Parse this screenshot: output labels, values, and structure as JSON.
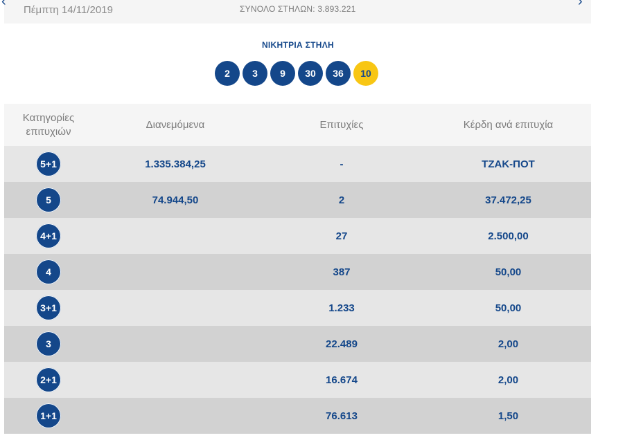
{
  "header": {
    "date": "Πέμπτη 14/11/2019",
    "total_columns": "ΣΥΝΟΛΟ ΣΤΗΛΩΝ: 3.893.221",
    "prev_icon": "chevron-left-icon",
    "next_icon": "chevron-right-icon"
  },
  "winning": {
    "title": "ΝΙΚΗΤΡΙΑ ΣΤΗΛΗ",
    "numbers": [
      "2",
      "3",
      "9",
      "30",
      "36"
    ],
    "joker": "10",
    "colors": {
      "ball": "#14478a",
      "joker": "#f8c614"
    }
  },
  "table": {
    "headers": {
      "category": "Κατηγορίες επιτυχιών",
      "distributed": "Διανεμόμενα",
      "winners": "Επιτυχίες",
      "prize": "Κέρδη ανά επιτυχία"
    },
    "rows": [
      {
        "category": "5+1",
        "distributed": "1.335.384,25",
        "winners": "-",
        "prize": "ΤΖΑΚ-ΠΟΤ"
      },
      {
        "category": "5",
        "distributed": "74.944,50",
        "winners": "2",
        "prize": "37.472,25"
      },
      {
        "category": "4+1",
        "distributed": "",
        "winners": "27",
        "prize": "2.500,00"
      },
      {
        "category": "4",
        "distributed": "",
        "winners": "387",
        "prize": "50,00"
      },
      {
        "category": "3+1",
        "distributed": "",
        "winners": "1.233",
        "prize": "50,00"
      },
      {
        "category": "3",
        "distributed": "",
        "winners": "22.489",
        "prize": "2,00"
      },
      {
        "category": "2+1",
        "distributed": "",
        "winners": "16.674",
        "prize": "2,00"
      },
      {
        "category": "1+1",
        "distributed": "",
        "winners": "76.613",
        "prize": "1,50"
      }
    ]
  }
}
